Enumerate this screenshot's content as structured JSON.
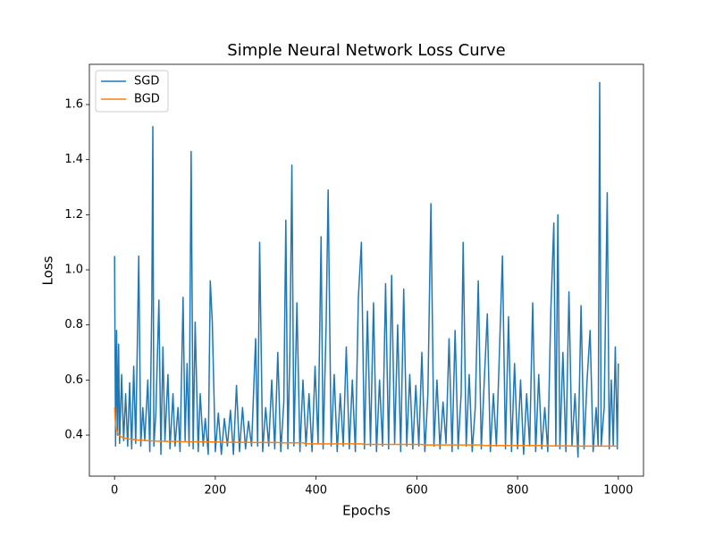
{
  "chart_data": {
    "type": "line",
    "title": "Simple Neural Network Loss Curve",
    "x_label": "Epochs",
    "y_label": "Loss",
    "x": [
      0,
      2,
      4,
      6,
      8,
      10,
      14,
      18,
      22,
      26,
      30,
      34,
      38,
      42,
      48,
      52,
      56,
      60,
      66,
      70,
      74,
      76,
      78,
      82,
      88,
      92,
      96,
      100,
      106,
      110,
      116,
      120,
      126,
      130,
      136,
      140,
      144,
      148,
      152,
      156,
      160,
      166,
      170,
      176,
      180,
      186,
      190,
      194,
      200,
      206,
      212,
      218,
      224,
      230,
      236,
      242,
      248,
      254,
      260,
      266,
      272,
      280,
      284,
      288,
      294,
      300,
      306,
      312,
      318,
      324,
      330,
      336,
      340,
      344,
      348,
      352,
      356,
      362,
      368,
      374,
      380,
      386,
      392,
      398,
      404,
      410,
      414,
      420,
      424,
      430,
      436,
      442,
      448,
      454,
      460,
      466,
      472,
      478,
      484,
      490,
      496,
      502,
      508,
      514,
      520,
      526,
      532,
      538,
      544,
      550,
      556,
      562,
      568,
      574,
      580,
      586,
      592,
      598,
      604,
      610,
      616,
      622,
      628,
      634,
      640,
      646,
      652,
      658,
      664,
      670,
      676,
      682,
      688,
      692,
      698,
      704,
      710,
      716,
      722,
      728,
      734,
      740,
      746,
      752,
      758,
      764,
      770,
      776,
      782,
      788,
      794,
      800,
      806,
      812,
      818,
      824,
      830,
      836,
      842,
      848,
      854,
      860,
      866,
      872,
      876,
      880,
      884,
      890,
      896,
      902,
      908,
      914,
      920,
      926,
      932,
      938,
      944,
      950,
      956,
      960,
      963,
      966,
      972,
      978,
      982,
      986,
      990,
      994,
      998,
      1000
    ],
    "series": [
      {
        "name": "SGD",
        "color": "#1f77b4",
        "values": [
          1.05,
          0.36,
          0.78,
          0.4,
          0.73,
          0.37,
          0.62,
          0.38,
          0.55,
          0.36,
          0.59,
          0.35,
          0.65,
          0.37,
          1.05,
          0.36,
          0.5,
          0.38,
          0.6,
          0.34,
          0.89,
          1.52,
          0.36,
          0.48,
          0.89,
          0.33,
          0.72,
          0.38,
          0.62,
          0.35,
          0.55,
          0.36,
          0.5,
          0.34,
          0.9,
          0.38,
          0.66,
          0.36,
          1.43,
          0.35,
          0.81,
          0.34,
          0.55,
          0.36,
          0.46,
          0.33,
          0.96,
          0.81,
          0.34,
          0.48,
          0.33,
          0.46,
          0.36,
          0.49,
          0.33,
          0.58,
          0.34,
          0.5,
          0.35,
          0.45,
          0.36,
          0.75,
          0.36,
          1.1,
          0.34,
          0.5,
          0.36,
          0.6,
          0.35,
          0.7,
          0.34,
          0.52,
          1.18,
          0.35,
          0.7,
          1.38,
          0.36,
          0.88,
          0.34,
          0.6,
          0.36,
          0.55,
          0.34,
          0.65,
          0.37,
          1.12,
          0.35,
          0.8,
          1.29,
          0.36,
          0.62,
          0.34,
          0.55,
          0.36,
          0.72,
          0.35,
          0.6,
          0.34,
          0.9,
          1.1,
          0.35,
          0.85,
          0.36,
          0.88,
          0.34,
          0.6,
          0.36,
          0.95,
          0.35,
          0.98,
          0.37,
          0.8,
          0.34,
          0.93,
          0.36,
          0.62,
          0.35,
          0.58,
          0.36,
          0.7,
          0.34,
          0.55,
          1.24,
          0.36,
          0.6,
          0.35,
          0.52,
          0.37,
          0.75,
          0.34,
          0.78,
          0.35,
          0.55,
          1.1,
          0.36,
          0.62,
          0.34,
          0.5,
          0.96,
          0.35,
          0.6,
          0.84,
          0.34,
          0.55,
          0.36,
          0.7,
          1.05,
          0.35,
          0.83,
          0.34,
          0.66,
          0.35,
          0.6,
          0.33,
          0.55,
          0.36,
          0.88,
          0.34,
          0.62,
          0.35,
          0.5,
          0.34,
          0.85,
          1.17,
          0.36,
          1.2,
          0.35,
          0.7,
          0.34,
          0.92,
          0.36,
          0.55,
          0.32,
          0.87,
          0.35,
          0.6,
          0.78,
          0.34,
          0.5,
          0.36,
          1.68,
          0.36,
          0.5,
          1.28,
          0.35,
          0.6,
          0.36,
          0.72,
          0.35,
          0.66
        ]
      },
      {
        "name": "BGD",
        "color": "#ff7f0e",
        "values": [
          0.5,
          0.44,
          0.42,
          0.41,
          0.4,
          0.397,
          0.393,
          0.39,
          0.388,
          0.387,
          0.386,
          0.385,
          0.384,
          0.383,
          0.382,
          0.381,
          0.381,
          0.38,
          0.38,
          0.38,
          0.379,
          0.379,
          0.379,
          0.378,
          0.378,
          0.378,
          0.378,
          0.377,
          0.377,
          0.377,
          0.377,
          0.377,
          0.377,
          0.376,
          0.376,
          0.376,
          0.376,
          0.376,
          0.376,
          0.376,
          0.376,
          0.376,
          0.376,
          0.376,
          0.375,
          0.375,
          0.375,
          0.375,
          0.375,
          0.375,
          0.374,
          0.374,
          0.374,
          0.374,
          0.374,
          0.374,
          0.374,
          0.374,
          0.374,
          0.374,
          0.373,
          0.373,
          0.373,
          0.373,
          0.373,
          0.373,
          0.373,
          0.373,
          0.373,
          0.373,
          0.372,
          0.372,
          0.372,
          0.372,
          0.372,
          0.372,
          0.372,
          0.372,
          0.372,
          0.372,
          0.368,
          0.368,
          0.368,
          0.368,
          0.368,
          0.368,
          0.368,
          0.368,
          0.368,
          0.368,
          0.368,
          0.368,
          0.368,
          0.368,
          0.368,
          0.368,
          0.368,
          0.368,
          0.368,
          0.368,
          0.366,
          0.366,
          0.366,
          0.366,
          0.366,
          0.366,
          0.366,
          0.366,
          0.366,
          0.366,
          0.366,
          0.366,
          0.366,
          0.366,
          0.366,
          0.366,
          0.366,
          0.366,
          0.366,
          0.366,
          0.364,
          0.364,
          0.364,
          0.364,
          0.364,
          0.364,
          0.364,
          0.364,
          0.364,
          0.364,
          0.364,
          0.364,
          0.364,
          0.364,
          0.364,
          0.364,
          0.364,
          0.364,
          0.364,
          0.364,
          0.362,
          0.362,
          0.362,
          0.362,
          0.362,
          0.362,
          0.362,
          0.362,
          0.362,
          0.362,
          0.362,
          0.362,
          0.362,
          0.362,
          0.362,
          0.362,
          0.362,
          0.362,
          0.362,
          0.362,
          0.361,
          0.361,
          0.361,
          0.361,
          0.361,
          0.361,
          0.361,
          0.361,
          0.361,
          0.361,
          0.36,
          0.36,
          0.36,
          0.36,
          0.36,
          0.36,
          0.36,
          0.36,
          0.36,
          0.36,
          0.36,
          0.36,
          0.36,
          0.36,
          0.36,
          0.36,
          0.36,
          0.36,
          0.36,
          0.36
        ]
      }
    ],
    "xlim": [
      -50,
      1050
    ],
    "xticks": [
      0,
      200,
      400,
      600,
      800,
      1000
    ],
    "ylim": [
      0.251,
      1.746
    ],
    "yticks": [
      0.4,
      0.6,
      0.8,
      {
        "value": 1,
        "label": "1.0"
      },
      1.2,
      1.4,
      1.6
    ],
    "legend": "upper left"
  }
}
